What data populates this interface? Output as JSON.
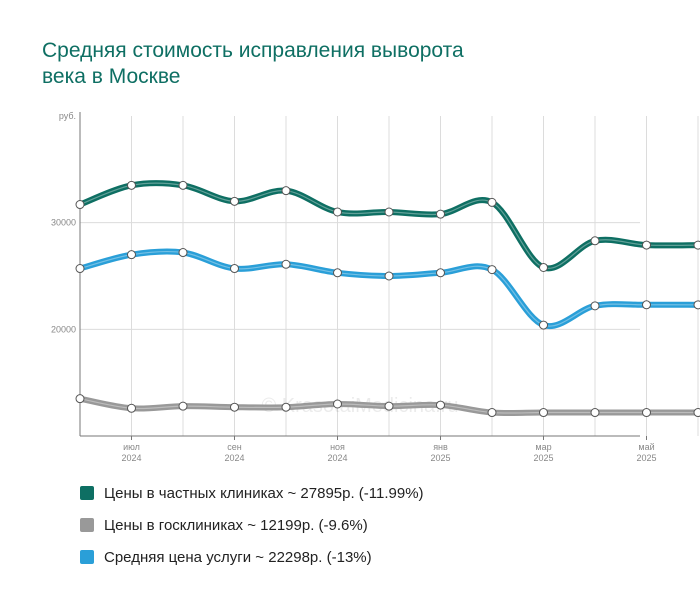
{
  "chart_data": {
    "type": "line",
    "title_lines": [
      "Средняя стоимость исправления выворота",
      "века в Москве"
    ],
    "ylabel": "руб.",
    "ylim": [
      10000,
      40000
    ],
    "yticks": [
      {
        "value": 20000,
        "label": "20000"
      },
      {
        "value": 30000,
        "label": "30000"
      }
    ],
    "x": [
      "2024-05",
      "2024-06",
      "2024-07",
      "2024-08",
      "2024-09",
      "2024-10",
      "2024-11",
      "2024-12",
      "2025-01",
      "2025-02",
      "2025-03",
      "2025-04",
      "2025-05"
    ],
    "xticks": [
      {
        "month": "июл",
        "year": "2024",
        "x": "2024-06"
      },
      {
        "month": "сен",
        "year": "2024",
        "x": "2024-08"
      },
      {
        "month": "ноя",
        "year": "2024",
        "x": "2024-10"
      },
      {
        "month": "янв",
        "year": "2025",
        "x": "2024-12"
      },
      {
        "month": "мар",
        "year": "2025",
        "x": "2025-02"
      },
      {
        "month": "май",
        "year": "2025",
        "x": "2025-04"
      }
    ],
    "grid": true,
    "legend_position": "bottom",
    "watermark": "© KrasotaiMedicina.ru",
    "series": [
      {
        "name": "Цены в частных клиниках",
        "legend": "Цены в частных клиниках ~ 27895р. (-11.99%)",
        "color": "#0e6f63",
        "values": [
          31700,
          33500,
          33500,
          32000,
          33000,
          31000,
          31000,
          30800,
          31900,
          25800,
          28300,
          27900,
          27895
        ]
      },
      {
        "name": "Цены в госклиниках",
        "legend": "Цены в госклиниках ~ 12199р. (-9.6%)",
        "color": "#999999",
        "values": [
          13500,
          12600,
          12800,
          12700,
          12700,
          13000,
          12800,
          12900,
          12200,
          12200,
          12200,
          12200,
          12199
        ]
      },
      {
        "name": "Средняя цена услуги",
        "legend": "Средняя цена услуги ~ 22298р. (-13%)",
        "color": "#2a9fd8",
        "values": [
          25700,
          27000,
          27200,
          25700,
          26100,
          25300,
          25000,
          25300,
          25600,
          20400,
          22200,
          22300,
          22298
        ]
      }
    ]
  }
}
